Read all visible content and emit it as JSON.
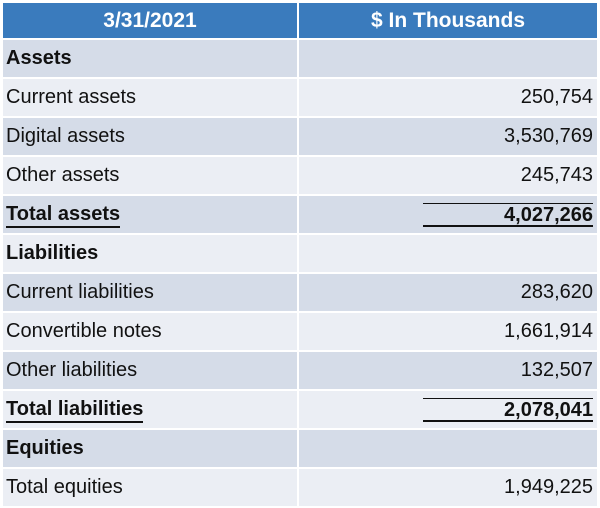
{
  "header": {
    "date": "3/31/2021",
    "units": "$ In Thousands"
  },
  "rows": [
    {
      "label": "Assets",
      "value": ""
    },
    {
      "label": "Current assets",
      "value": "250,754"
    },
    {
      "label": "Digital assets",
      "value": "3,530,769"
    },
    {
      "label": "Other assets",
      "value": "245,743"
    },
    {
      "label": "Total assets",
      "value": "4,027,266"
    },
    {
      "label": "Liabilities",
      "value": ""
    },
    {
      "label": "Current liabilities",
      "value": "283,620"
    },
    {
      "label": "Convertible notes",
      "value": "1,661,914"
    },
    {
      "label": "Other liabilities",
      "value": "132,507"
    },
    {
      "label": "Total liabilities",
      "value": "2,078,041"
    },
    {
      "label": "Equities",
      "value": ""
    },
    {
      "label": "Total equities",
      "value": "1,949,225"
    }
  ],
  "colors": {
    "header_bg": "#3a7bbd",
    "row_shade": "#d5dce8",
    "row_plain": "#ebeef4"
  }
}
